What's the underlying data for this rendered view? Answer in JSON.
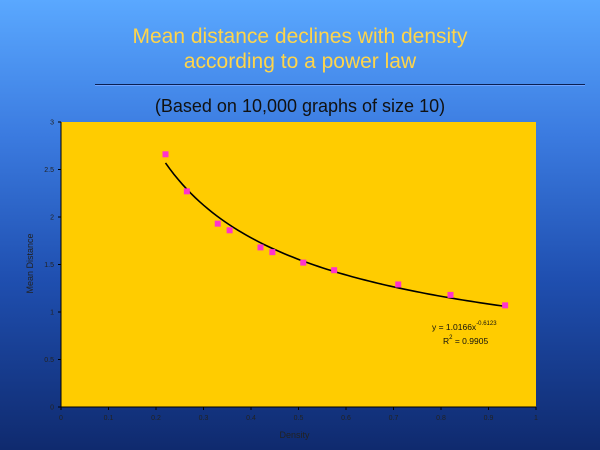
{
  "slide": {
    "title": "Mean distance declines with density\naccording to a power law",
    "subtitle": "(Based on 10,000 graphs of size 10)"
  },
  "colors": {
    "plot_background": "#ffcc00",
    "series_line": "#000000",
    "marker": "#ff33cc",
    "title": "#ffd54a"
  },
  "chart_data": {
    "type": "scatter",
    "xlabel": "Density",
    "ylabel": "Mean Distance",
    "xlim": [
      0,
      1
    ],
    "ylim": [
      0,
      3
    ],
    "x_ticks": [
      "0",
      "0.1",
      "0.2",
      "0.3",
      "0.4",
      "0.5",
      "0.6",
      "0.7",
      "0.8",
      "0.9",
      "1"
    ],
    "y_ticks": [
      "0",
      "0.5",
      "1",
      "1.5",
      "2",
      "2.5",
      "3"
    ],
    "grid": false,
    "series": [
      {
        "x": [
          0.22,
          0.265,
          0.33,
          0.355,
          0.42,
          0.445,
          0.51,
          0.575,
          0.71,
          0.82,
          0.935
        ],
        "y": [
          2.66,
          2.27,
          1.93,
          1.86,
          1.68,
          1.63,
          1.52,
          1.44,
          1.29,
          1.18,
          1.07
        ]
      }
    ],
    "trendline": {
      "type": "power",
      "coefficient": 1.0166,
      "exponent": -0.6123,
      "equation_base": "y = 1.0166x",
      "equation_exp": "-0.6123",
      "r2_base": "R",
      "r2_sup": "2",
      "r2_value": " = 0.9905"
    }
  }
}
